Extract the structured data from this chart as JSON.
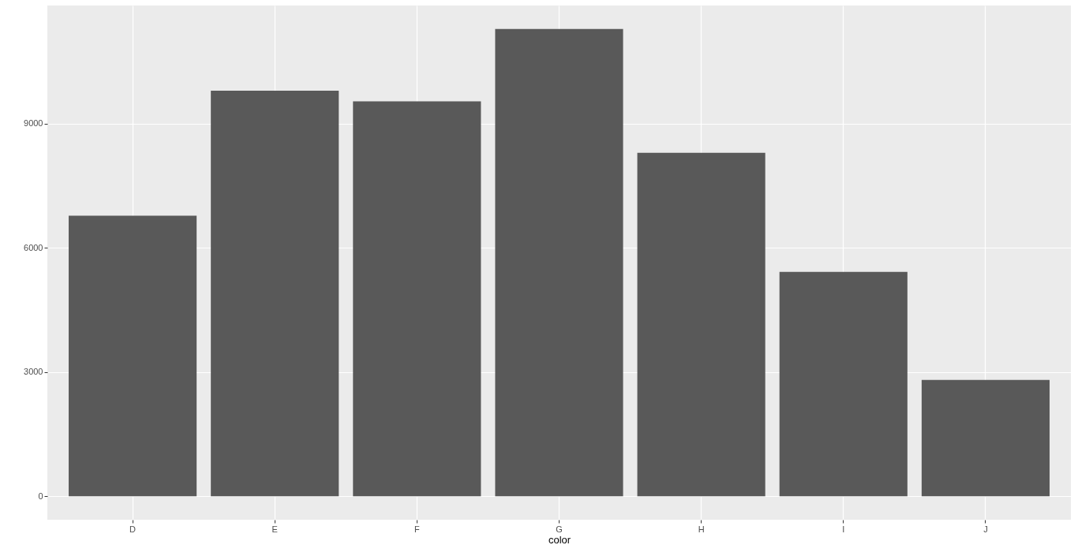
{
  "chart_data": {
    "type": "bar",
    "xlabel": "color",
    "categories": [
      "D",
      "E",
      "F",
      "G",
      "H",
      "I",
      "J"
    ],
    "values": [
      6780,
      9800,
      9540,
      11290,
      8300,
      5420,
      2810
    ],
    "color": "#595959",
    "ylim": [
      -565,
      11857
    ],
    "yticks": [
      0,
      3000,
      6000,
      9000
    ],
    "grid": true
  }
}
